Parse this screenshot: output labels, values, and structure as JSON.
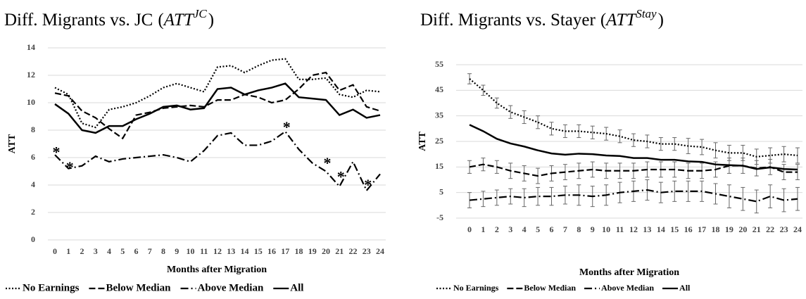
{
  "chart_data": [
    {
      "type": "line",
      "title": "Diff. Migrants vs. JC",
      "title_symbol": {
        "open": "(",
        "base": "ATT",
        "sup": "JC",
        "close": ")"
      },
      "x_label": "Months after Migration",
      "y_label": "ATT",
      "categories": [
        "0",
        "1",
        "2",
        "3",
        "4",
        "5",
        "6",
        "7",
        "8",
        "9",
        "10",
        "11",
        "12",
        "13",
        "14",
        "15",
        "16",
        "17",
        "18",
        "19",
        "20",
        "21",
        "22",
        "23",
        "24"
      ],
      "ylim": [
        0,
        14
      ],
      "yticks": [
        0,
        2,
        4,
        6,
        8,
        10,
        12,
        14
      ],
      "grid": true,
      "legend": "bottom",
      "series": [
        {
          "name": "No Earnings",
          "color": "#000000",
          "style": "dotted",
          "values": [
            11.1,
            10.6,
            8.5,
            8.2,
            9.5,
            9.7,
            10.0,
            10.5,
            11.1,
            11.4,
            11.1,
            10.8,
            12.6,
            12.7,
            12.2,
            12.7,
            13.1,
            13.2,
            11.7,
            11.7,
            11.8,
            10.6,
            10.4,
            10.9,
            10.8
          ]
        },
        {
          "name": "Below Median",
          "color": "#000000",
          "style": "dashed",
          "values": [
            10.7,
            10.5,
            9.4,
            8.9,
            8.1,
            7.4,
            9.1,
            9.3,
            9.6,
            9.7,
            9.8,
            9.7,
            10.2,
            10.2,
            10.6,
            10.4,
            10.0,
            10.2,
            11.0,
            12.0,
            12.2,
            10.9,
            11.3,
            9.7,
            9.4
          ]
        },
        {
          "name": "Above Median",
          "color": "#000000",
          "style": "dashdot",
          "values": [
            6.2,
            5.2,
            5.4,
            6.1,
            5.7,
            5.9,
            6.0,
            6.1,
            6.2,
            6.0,
            5.7,
            6.5,
            7.6,
            7.8,
            6.9,
            6.9,
            7.2,
            7.9,
            6.6,
            5.6,
            5.0,
            3.9,
            5.7,
            3.6,
            4.8
          ]
        },
        {
          "name": "All",
          "color": "#000000",
          "style": "solid",
          "values": [
            9.9,
            9.2,
            8.0,
            7.8,
            8.3,
            8.3,
            8.8,
            9.2,
            9.7,
            9.8,
            9.5,
            9.6,
            11.0,
            11.1,
            10.6,
            10.9,
            11.1,
            11.4,
            10.4,
            10.3,
            10.2,
            9.1,
            9.5,
            8.9,
            9.1
          ]
        }
      ],
      "annotations": [
        {
          "text": "*",
          "category": "0",
          "y": 6.6
        },
        {
          "text": "*",
          "category": "1",
          "y": 5.5
        },
        {
          "text": "*",
          "category": "17",
          "y": 8.4
        },
        {
          "text": "*",
          "category": "20",
          "y": 5.8
        },
        {
          "text": "*",
          "category": "21",
          "y": 4.8
        },
        {
          "text": "*",
          "category": "23",
          "y": 4.2
        }
      ]
    },
    {
      "type": "line",
      "title": "Diff. Migrants vs. Stayer",
      "title_symbol": {
        "open": "(",
        "base": "ATT",
        "sup": "Stay",
        "close": ")"
      },
      "x_label": "Months after Migration",
      "y_label": "ATT",
      "categories": [
        "0",
        "1",
        "2",
        "3",
        "4",
        "5",
        "6",
        "7",
        "8",
        "9",
        "10",
        "11",
        "12",
        "13",
        "14",
        "15",
        "16",
        "17",
        "18",
        "19",
        "20",
        "21",
        "22",
        "23",
        "24"
      ],
      "ylim": [
        -5,
        55
      ],
      "yticks": [
        -5,
        5,
        15,
        25,
        35,
        45,
        55
      ],
      "grid": true,
      "legend": "bottom",
      "series": [
        {
          "name": "No Earnings",
          "color": "#000000",
          "style": "dotted",
          "values": [
            49.5,
            45,
            40,
            36.5,
            34.5,
            32.5,
            30,
            29,
            29,
            28.5,
            28,
            27,
            25.5,
            25,
            24,
            24,
            23.2,
            22.8,
            21.5,
            20.5,
            20.5,
            19,
            19.5,
            20,
            19.5
          ],
          "errors": [
            2,
            2,
            2,
            2.5,
            2.5,
            2.5,
            2.5,
            2.5,
            2.5,
            2.5,
            2.5,
            2.5,
            2.5,
            2.5,
            2.5,
            2.5,
            3,
            3,
            3,
            3,
            3,
            3,
            3,
            3,
            3
          ]
        },
        {
          "name": "Below Median",
          "color": "#000000",
          "style": "dashed",
          "values": [
            15,
            16,
            15,
            13.5,
            12.5,
            11.5,
            12.5,
            13,
            13.5,
            14,
            13.5,
            13.5,
            13.5,
            14,
            14,
            14,
            13.5,
            13.5,
            14,
            15.5,
            15.5,
            14.5,
            15,
            13,
            13
          ],
          "errors": [
            2.5,
            2.5,
            2.5,
            3,
            3,
            3,
            3,
            3,
            3,
            3,
            3,
            3,
            3,
            3,
            3,
            3,
            3,
            3,
            3,
            3,
            3,
            3,
            3,
            3,
            3
          ]
        },
        {
          "name": "Above Median",
          "color": "#000000",
          "style": "dashdot",
          "values": [
            2,
            2.5,
            3,
            3.5,
            3,
            3.5,
            3.5,
            4,
            4,
            3.5,
            4,
            5,
            5.5,
            6,
            5,
            5.5,
            5.5,
            5.5,
            4.5,
            3.5,
            2.5,
            1.5,
            3.5,
            2,
            2.5
          ],
          "errors": [
            3,
            3,
            3,
            3,
            3.5,
            3.5,
            3.5,
            3.5,
            4,
            4,
            4,
            4,
            4,
            4,
            4,
            4,
            4,
            4,
            4,
            4.5,
            4.5,
            4.5,
            4.5,
            4.5,
            4.5
          ]
        },
        {
          "name": "All",
          "color": "#000000",
          "style": "solid",
          "values": [
            31.5,
            29,
            26,
            24.2,
            23,
            21.5,
            20.3,
            19.8,
            20.2,
            20,
            19.5,
            19.3,
            18.5,
            18.5,
            17.8,
            17.8,
            17.2,
            17,
            16,
            15.7,
            15.5,
            14.2,
            14.8,
            14.2,
            14.0
          ]
        }
      ]
    }
  ]
}
